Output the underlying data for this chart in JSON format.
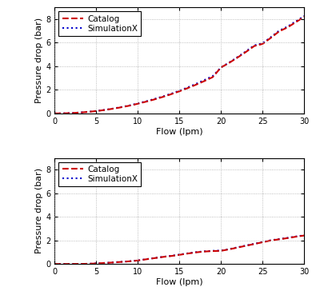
{
  "top_catalog_x": [
    0,
    1,
    2,
    3,
    4,
    5,
    6,
    7,
    8,
    9,
    10,
    11,
    12,
    13,
    14,
    15,
    16,
    17,
    18,
    19,
    20,
    21,
    22,
    23,
    24,
    25,
    26,
    27,
    28,
    29,
    30
  ],
  "top_catalog_y": [
    0,
    0.008,
    0.03,
    0.07,
    0.13,
    0.2,
    0.29,
    0.4,
    0.52,
    0.66,
    0.82,
    1.0,
    1.19,
    1.4,
    1.63,
    1.88,
    2.15,
    2.44,
    2.75,
    3.08,
    3.9,
    4.3,
    4.75,
    5.22,
    5.72,
    5.9,
    6.42,
    6.97,
    7.3,
    7.75,
    8.2
  ],
  "top_simx_x": [
    0,
    1,
    2,
    3,
    4,
    5,
    6,
    7,
    8,
    9,
    10,
    11,
    12,
    13,
    14,
    15,
    16,
    17,
    18,
    19,
    20,
    21,
    22,
    23,
    24,
    25,
    26,
    27,
    28,
    29,
    30
  ],
  "top_simx_y": [
    0,
    0.009,
    0.035,
    0.075,
    0.135,
    0.21,
    0.3,
    0.41,
    0.54,
    0.68,
    0.85,
    1.03,
    1.23,
    1.44,
    1.67,
    1.93,
    2.21,
    2.51,
    2.83,
    3.17,
    3.9,
    4.33,
    4.79,
    5.27,
    5.78,
    5.95,
    6.48,
    7.03,
    7.37,
    7.82,
    8.27
  ],
  "bot_catalog_x": [
    0,
    1,
    2,
    3,
    4,
    5,
    6,
    7,
    8,
    9,
    10,
    11,
    12,
    13,
    14,
    15,
    16,
    17,
    18,
    19,
    20,
    21,
    22,
    23,
    24,
    25,
    26,
    27,
    28,
    29,
    30
  ],
  "bot_catalog_y": [
    0,
    0.001,
    0.004,
    0.01,
    0.02,
    0.05,
    0.09,
    0.13,
    0.18,
    0.23,
    0.3,
    0.4,
    0.5,
    0.6,
    0.68,
    0.78,
    0.89,
    0.99,
    1.06,
    1.1,
    1.12,
    1.25,
    1.4,
    1.55,
    1.7,
    1.85,
    2.0,
    2.1,
    2.2,
    2.32,
    2.42
  ],
  "bot_simx_x": [
    0,
    1,
    2,
    3,
    4,
    5,
    6,
    7,
    8,
    9,
    10,
    11,
    12,
    13,
    14,
    15,
    16,
    17,
    18,
    19,
    20,
    21,
    22,
    23,
    24,
    25,
    26,
    27,
    28,
    29,
    30
  ],
  "bot_simx_y": [
    0,
    0.001,
    0.004,
    0.01,
    0.02,
    0.055,
    0.09,
    0.135,
    0.185,
    0.235,
    0.31,
    0.41,
    0.51,
    0.61,
    0.7,
    0.8,
    0.91,
    1.01,
    1.08,
    1.12,
    1.14,
    1.27,
    1.42,
    1.57,
    1.72,
    1.87,
    2.02,
    2.12,
    2.22,
    2.34,
    2.44
  ],
  "catalog_color": "#cc0000",
  "simx_color": "#0000cc",
  "catalog_linestyle": "--",
  "simx_linestyle": ":",
  "catalog_label": "Catalog",
  "simx_label": "SimulationX",
  "xlabel": "Flow (lpm)",
  "ylabel": "Pressure drop (bar)",
  "xlim": [
    0,
    30
  ],
  "ylim": [
    0,
    9
  ],
  "xticks": [
    0,
    5,
    10,
    15,
    20,
    25,
    30
  ],
  "yticks": [
    0,
    2,
    4,
    6,
    8
  ],
  "grid_color": "#aaaaaa",
  "grid_linestyle": ":",
  "linewidth": 1.5,
  "legend_fontsize": 7.5,
  "axis_fontsize": 8,
  "tick_fontsize": 7,
  "background_color": "#ffffff"
}
